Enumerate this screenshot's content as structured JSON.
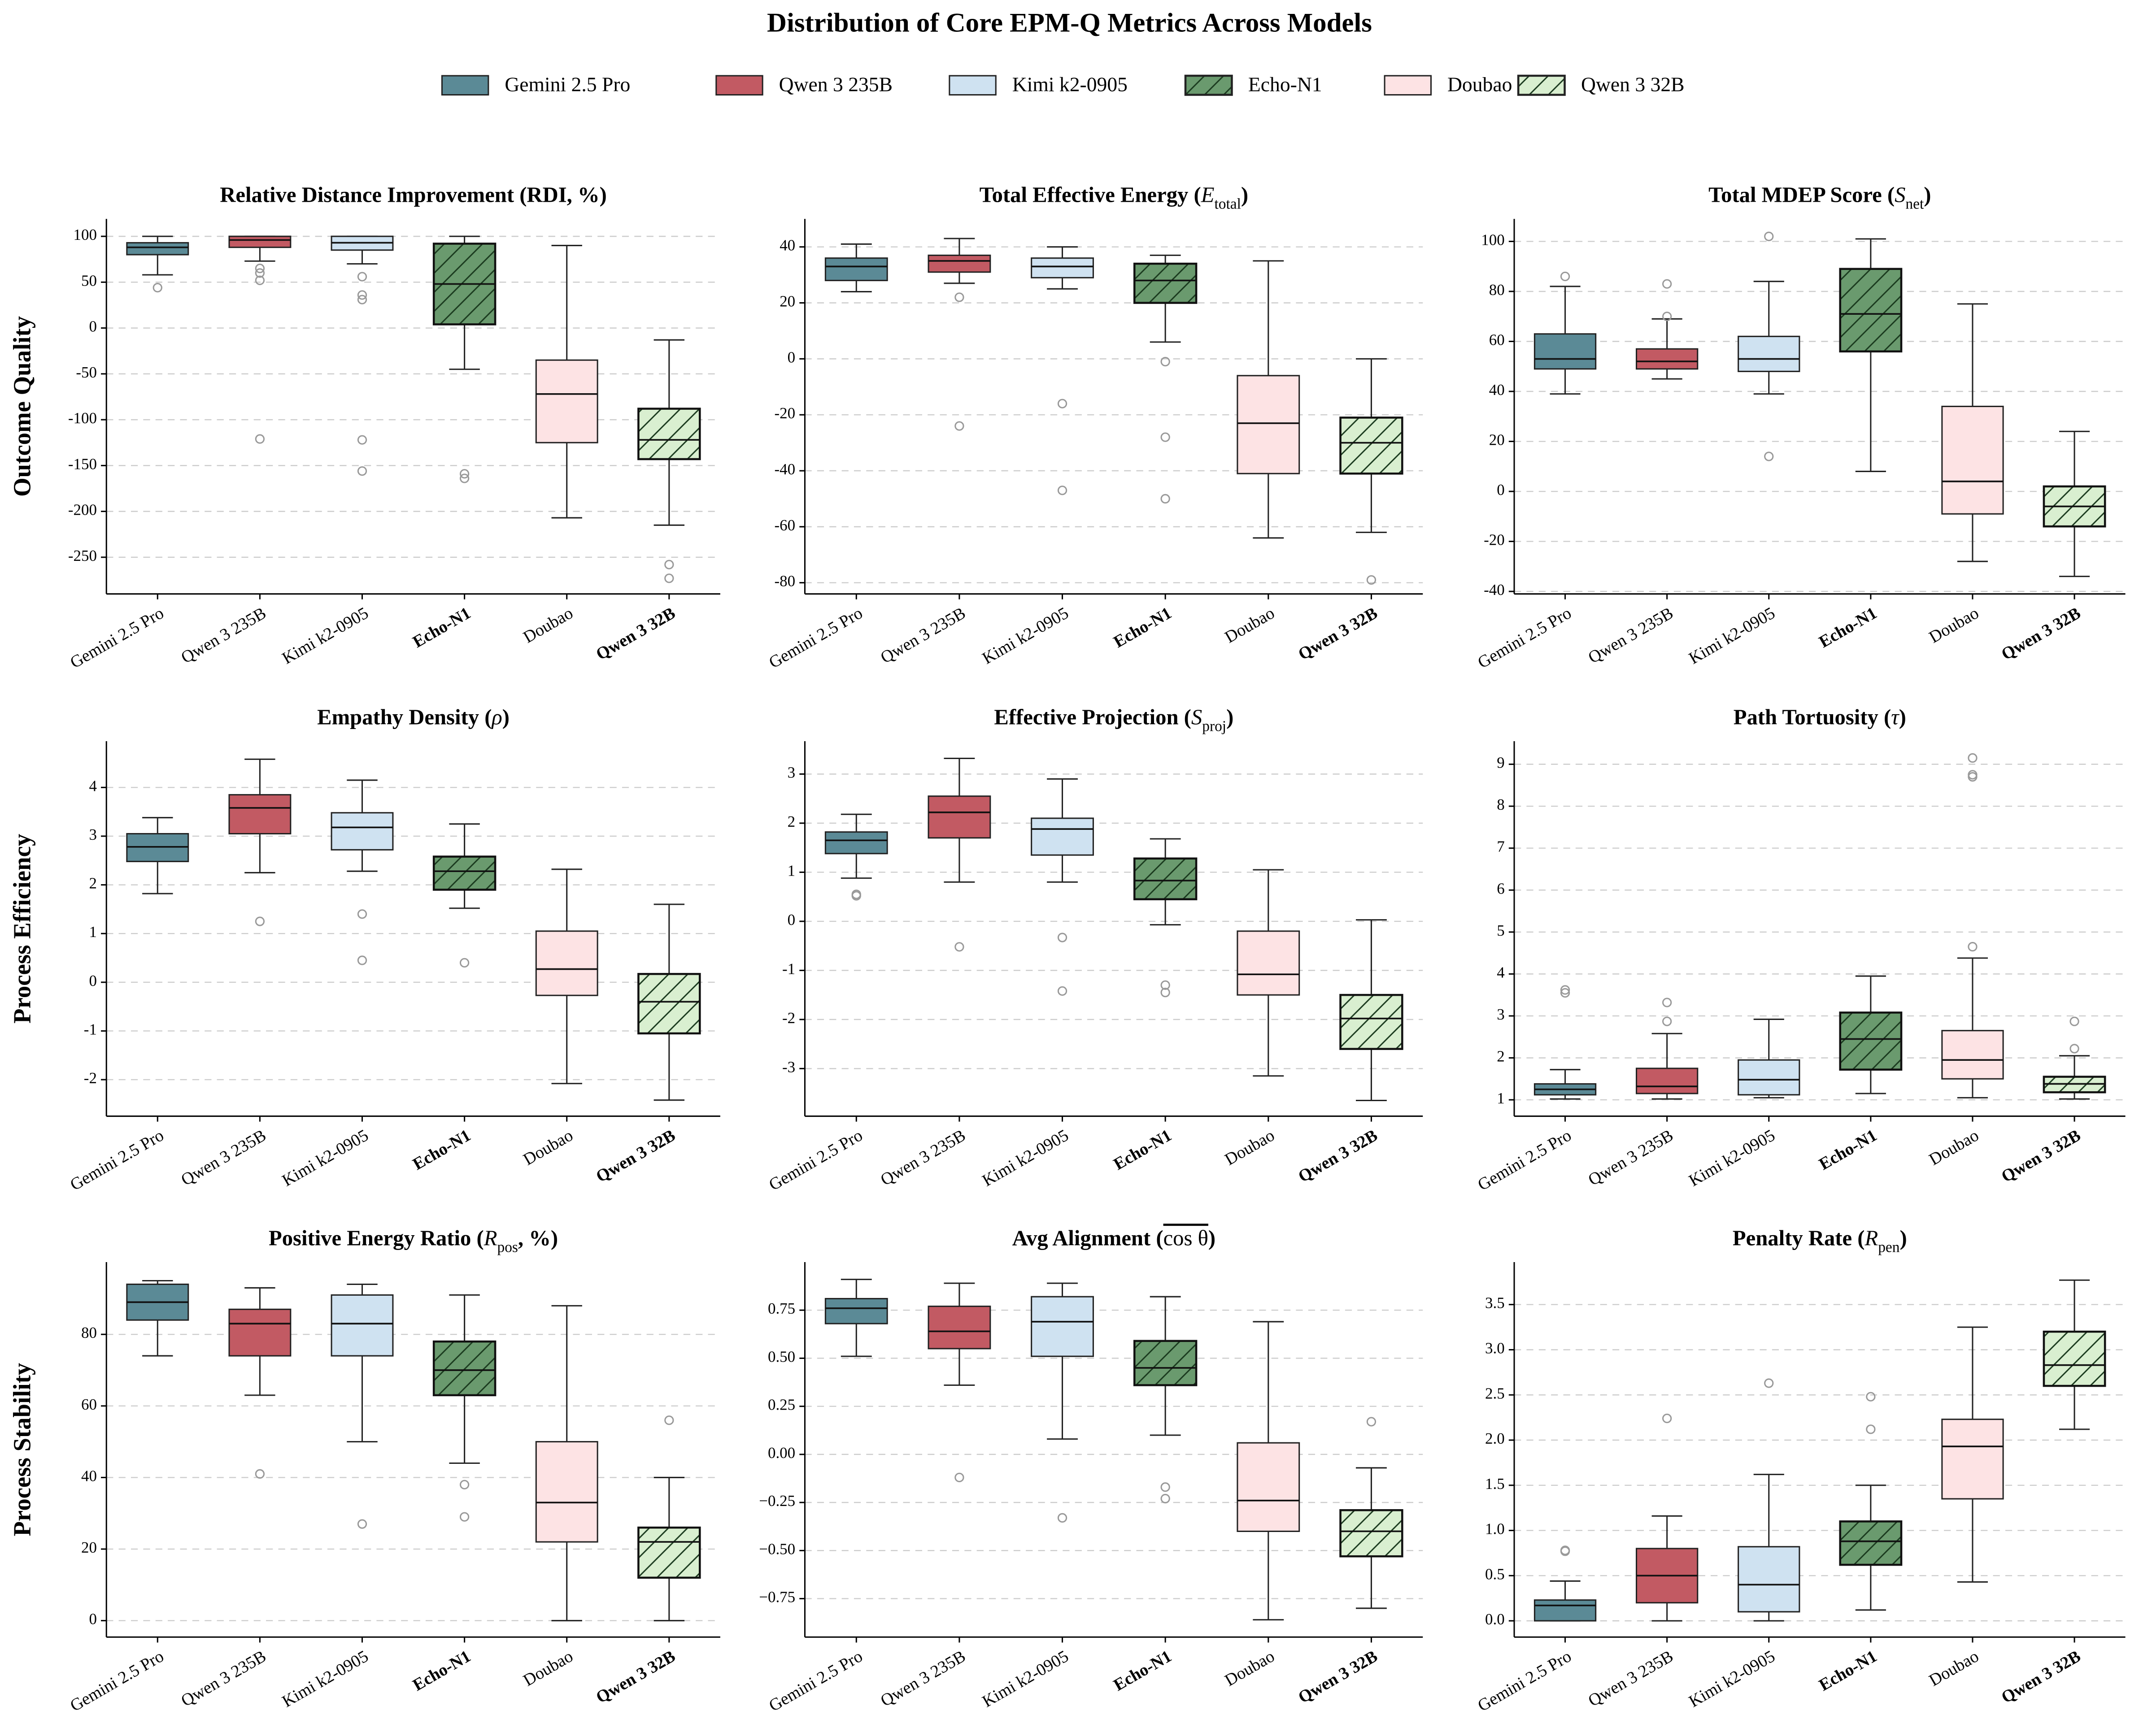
{
  "title": "Distribution of Core EPM-Q Metrics Across Models",
  "legend": {
    "names": [
      "Gemini 2.5 Pro",
      "Qwen 3 235B",
      "Kimi k2-0905",
      "Echo-N1",
      "Doubao",
      "Qwen 3 32B"
    ],
    "colors": [
      "#5b8a96",
      "#c25a63",
      "#cfe2f1",
      "#6a9a6e",
      "#fde3e4",
      "#d9efd0"
    ],
    "hatched": [
      false,
      false,
      false,
      true,
      false,
      true
    ]
  },
  "chart_data": [
    {
      "type": "box",
      "ylabel": "Outcome Quality",
      "title": [
        {
          "text": "Relative Distance Improvement (RDI, %)"
        }
      ],
      "categories": [
        "Gemini 2.5 Pro",
        "Qwen 3 235B",
        "Kimi k2-0905",
        "Echo-N1",
        "Doubao",
        "Qwen 3 32B"
      ],
      "ylim": [
        -290,
        119
      ],
      "yticks": [
        -250,
        -200,
        -150,
        -100,
        -50,
        0,
        50,
        100
      ],
      "grid": true,
      "boxes": [
        {
          "whishi": 100,
          "q3": 93,
          "med": 88,
          "q1": 80,
          "whislo": 58,
          "fliers": [
            44
          ]
        },
        {
          "whishi": 100,
          "q3": 100,
          "med": 96,
          "q1": 88,
          "whislo": 73,
          "fliers": [
            65,
            60,
            52,
            -121
          ]
        },
        {
          "whishi": 100,
          "q3": 100,
          "med": 93,
          "q1": 85,
          "whislo": 70,
          "fliers": [
            56,
            36,
            31,
            -122,
            -156
          ]
        },
        {
          "whishi": 100,
          "q3": 92,
          "med": 48,
          "q1": 4,
          "whislo": -45,
          "fliers": [
            -159,
            -164
          ]
        },
        {
          "whishi": 90,
          "q3": -35,
          "med": -72,
          "q1": -125,
          "whislo": -207,
          "fliers": []
        },
        {
          "whishi": -13,
          "q3": -88,
          "med": -122,
          "q1": -143,
          "whislo": -215,
          "fliers": [
            -258,
            -273
          ]
        }
      ]
    },
    {
      "type": "box",
      "title": [
        {
          "text": "Total Effective Energy ("
        },
        {
          "text": "E",
          "style": "italic"
        },
        {
          "text": "total",
          "style": "sub"
        },
        {
          "text": ")"
        }
      ],
      "categories": [
        "Gemini 2.5 Pro",
        "Qwen 3 235B",
        "Kimi k2-0905",
        "Echo-N1",
        "Doubao",
        "Qwen 3 32B"
      ],
      "ylim": [
        -84,
        50
      ],
      "yticks": [
        -80,
        -60,
        -40,
        -20,
        0,
        20,
        40
      ],
      "grid": true,
      "boxes": [
        {
          "whishi": 41,
          "q3": 36,
          "med": 33,
          "q1": 28,
          "whislo": 24,
          "fliers": []
        },
        {
          "whishi": 43,
          "q3": 37,
          "med": 35,
          "q1": 31,
          "whislo": 27,
          "fliers": [
            22,
            -24
          ]
        },
        {
          "whishi": 40,
          "q3": 36,
          "med": 33,
          "q1": 29,
          "whislo": 25,
          "fliers": [
            -16,
            -47
          ]
        },
        {
          "whishi": 37,
          "q3": 34,
          "med": 28,
          "q1": 20,
          "whislo": 6,
          "fliers": [
            -1,
            -28,
            -50
          ]
        },
        {
          "whishi": 35,
          "q3": -6,
          "med": -23,
          "q1": -41,
          "whislo": -64,
          "fliers": []
        },
        {
          "whishi": 0,
          "q3": -21,
          "med": -30,
          "q1": -41,
          "whislo": -62,
          "fliers": [
            -79
          ]
        }
      ]
    },
    {
      "type": "box",
      "title": [
        {
          "text": "Total MDEP Score ("
        },
        {
          "text": "S",
          "style": "italic"
        },
        {
          "text": "net",
          "style": "sub"
        },
        {
          "text": ")"
        }
      ],
      "categories": [
        "Gemini 2.5 Pro",
        "Qwen 3 235B",
        "Kimi k2-0905",
        "Echo-N1",
        "Doubao",
        "Qwen 3 32B"
      ],
      "ylim": [
        -41,
        109
      ],
      "yticks": [
        -40,
        -20,
        0,
        20,
        40,
        60,
        80,
        100
      ],
      "grid": true,
      "boxes": [
        {
          "whishi": 82,
          "q3": 63,
          "med": 53,
          "q1": 49,
          "whislo": 39,
          "fliers": [
            86
          ]
        },
        {
          "whishi": 69,
          "q3": 57,
          "med": 52,
          "q1": 49,
          "whislo": 45,
          "fliers": [
            83,
            70
          ]
        },
        {
          "whishi": 84,
          "q3": 62,
          "med": 53,
          "q1": 48,
          "whislo": 39,
          "fliers": [
            102,
            14
          ]
        },
        {
          "whishi": 101,
          "q3": 89,
          "med": 71,
          "q1": 56,
          "whislo": 8,
          "fliers": []
        },
        {
          "whishi": 75,
          "q3": 34,
          "med": 4,
          "q1": -9,
          "whislo": -28,
          "fliers": []
        },
        {
          "whishi": 24,
          "q3": 2,
          "med": -6,
          "q1": -14,
          "whislo": -34,
          "fliers": []
        }
      ]
    },
    {
      "type": "box",
      "ylabel": "Process Efficiency",
      "title": [
        {
          "text": "Empathy Density ("
        },
        {
          "text": "ρ",
          "style": "italic"
        },
        {
          "text": ")"
        }
      ],
      "categories": [
        "Gemini 2.5 Pro",
        "Qwen 3 235B",
        "Kimi k2-0905",
        "Echo-N1",
        "Doubao",
        "Qwen 3 32B"
      ],
      "ylim": [
        -2.75,
        4.95
      ],
      "yticks": [
        -2,
        -1,
        0,
        1,
        2,
        3,
        4
      ],
      "grid": true,
      "boxes": [
        {
          "whishi": 3.38,
          "q3": 3.05,
          "med": 2.78,
          "q1": 2.48,
          "whislo": 1.82,
          "fliers": []
        },
        {
          "whishi": 4.58,
          "q3": 3.85,
          "med": 3.58,
          "q1": 3.05,
          "whislo": 2.25,
          "fliers": [
            1.25
          ]
        },
        {
          "whishi": 4.15,
          "q3": 3.48,
          "med": 3.18,
          "q1": 2.72,
          "whislo": 2.28,
          "fliers": [
            1.4,
            0.45
          ]
        },
        {
          "whishi": 3.25,
          "q3": 2.58,
          "med": 2.28,
          "q1": 1.9,
          "whislo": 1.52,
          "fliers": [
            0.4
          ]
        },
        {
          "whishi": 2.32,
          "q3": 1.05,
          "med": 0.27,
          "q1": -0.27,
          "whislo": -2.08,
          "fliers": []
        },
        {
          "whishi": 1.6,
          "q3": 0.17,
          "med": -0.4,
          "q1": -1.05,
          "whislo": -2.42,
          "fliers": []
        }
      ]
    },
    {
      "type": "box",
      "title": [
        {
          "text": "Effective Projection ("
        },
        {
          "text": "S",
          "style": "italic"
        },
        {
          "text": "proj",
          "style": "sub"
        },
        {
          "text": ")"
        }
      ],
      "categories": [
        "Gemini 2.5 Pro",
        "Qwen 3 235B",
        "Kimi k2-0905",
        "Echo-N1",
        "Doubao",
        "Qwen 3 32B"
      ],
      "ylim": [
        -3.97,
        3.67
      ],
      "yticks": [
        -3,
        -2,
        -1,
        0,
        1,
        2,
        3
      ],
      "grid": true,
      "boxes": [
        {
          "whishi": 2.18,
          "q3": 1.82,
          "med": 1.65,
          "q1": 1.38,
          "whislo": 0.88,
          "fliers": [
            0.55,
            0.52
          ]
        },
        {
          "whishi": 3.32,
          "q3": 2.55,
          "med": 2.22,
          "q1": 1.7,
          "whislo": 0.8,
          "fliers": [
            -0.52
          ]
        },
        {
          "whishi": 2.9,
          "q3": 2.1,
          "med": 1.88,
          "q1": 1.35,
          "whislo": 0.8,
          "fliers": [
            -0.33,
            -1.42
          ]
        },
        {
          "whishi": 1.68,
          "q3": 1.28,
          "med": 0.83,
          "q1": 0.45,
          "whislo": -0.07,
          "fliers": [
            -1.3,
            -1.45
          ]
        },
        {
          "whishi": 1.05,
          "q3": -0.2,
          "med": -1.08,
          "q1": -1.5,
          "whislo": -3.15,
          "fliers": []
        },
        {
          "whishi": 0.03,
          "q3": -1.5,
          "med": -1.98,
          "q1": -2.6,
          "whislo": -3.65,
          "fliers": []
        }
      ]
    },
    {
      "type": "box",
      "title": [
        {
          "text": "Path Tortuosity ("
        },
        {
          "text": "τ",
          "style": "italic"
        },
        {
          "text": ")"
        }
      ],
      "categories": [
        "Gemini 2.5 Pro",
        "Qwen 3 235B",
        "Kimi k2-0905",
        "Echo-N1",
        "Doubao",
        "Qwen 3 32B"
      ],
      "ylim": [
        0.61,
        9.55
      ],
      "yticks": [
        1,
        2,
        3,
        4,
        5,
        6,
        7,
        8,
        9
      ],
      "grid": true,
      "boxes": [
        {
          "whishi": 1.72,
          "q3": 1.38,
          "med": 1.25,
          "q1": 1.12,
          "whislo": 1.02,
          "fliers": [
            3.62,
            3.55
          ]
        },
        {
          "whishi": 2.58,
          "q3": 1.75,
          "med": 1.32,
          "q1": 1.15,
          "whislo": 1.02,
          "fliers": [
            3.32,
            2.87
          ]
        },
        {
          "whishi": 2.92,
          "q3": 1.95,
          "med": 1.48,
          "q1": 1.12,
          "whislo": 1.05,
          "fliers": []
        },
        {
          "whishi": 3.95,
          "q3": 3.08,
          "med": 2.45,
          "q1": 1.72,
          "whislo": 1.15,
          "fliers": []
        },
        {
          "whishi": 4.38,
          "q3": 2.65,
          "med": 1.95,
          "q1": 1.5,
          "whislo": 1.05,
          "fliers": [
            9.15,
            8.75,
            8.7,
            4.65
          ]
        },
        {
          "whishi": 2.05,
          "q3": 1.55,
          "med": 1.38,
          "q1": 1.18,
          "whislo": 1.02,
          "fliers": [
            2.87,
            2.22
          ]
        }
      ]
    },
    {
      "type": "box",
      "ylabel": "Process Stability",
      "title": [
        {
          "text": "Positive Energy Ratio ("
        },
        {
          "text": "R",
          "style": "italic"
        },
        {
          "text": "pos",
          "style": "sub"
        },
        {
          "text": ", %)"
        }
      ],
      "categories": [
        "Gemini 2.5 Pro",
        "Qwen 3 235B",
        "Kimi k2-0905",
        "Echo-N1",
        "Doubao",
        "Qwen 3 32B"
      ],
      "ylim": [
        -4.6,
        100.2
      ],
      "yticks": [
        0,
        20,
        40,
        60,
        80
      ],
      "grid": true,
      "boxes": [
        {
          "whishi": 95,
          "q3": 94,
          "med": 89,
          "q1": 84,
          "whislo": 74,
          "fliers": []
        },
        {
          "whishi": 93,
          "q3": 87,
          "med": 83,
          "q1": 74,
          "whislo": 63,
          "fliers": [
            41
          ]
        },
        {
          "whishi": 94,
          "q3": 91,
          "med": 83,
          "q1": 74,
          "whislo": 50,
          "fliers": [
            27
          ]
        },
        {
          "whishi": 91,
          "q3": 78,
          "med": 70,
          "q1": 63,
          "whislo": 44,
          "fliers": [
            38,
            29
          ]
        },
        {
          "whishi": 88,
          "q3": 50,
          "med": 33,
          "q1": 22,
          "whislo": 0,
          "fliers": []
        },
        {
          "whishi": 40,
          "q3": 26,
          "med": 22,
          "q1": 12,
          "whislo": 0,
          "fliers": [
            56
          ]
        }
      ]
    },
    {
      "type": "box",
      "title": [
        {
          "text": "Avg Alignment ("
        },
        {
          "text": "cos θ",
          "style": "overline"
        },
        {
          "text": ")"
        }
      ],
      "categories": [
        "Gemini 2.5 Pro",
        "Qwen 3 235B",
        "Kimi k2-0905",
        "Echo-N1",
        "Doubao",
        "Qwen 3 32B"
      ],
      "ylim": [
        -0.95,
        1.0
      ],
      "yticks": [
        {
          "value": -0.75,
          "label": "−0.75"
        },
        {
          "value": -0.5,
          "label": "−0.50"
        },
        {
          "value": -0.25,
          "label": "−0.25"
        },
        {
          "value": 0,
          "label": "0.00"
        },
        {
          "value": 0.25,
          "label": "0.25"
        },
        {
          "value": 0.5,
          "label": "0.50"
        },
        {
          "value": 0.75,
          "label": "0.75"
        }
      ],
      "grid": true,
      "boxes": [
        {
          "whishi": 0.91,
          "q3": 0.81,
          "med": 0.76,
          "q1": 0.68,
          "whislo": 0.51,
          "fliers": []
        },
        {
          "whishi": 0.89,
          "q3": 0.77,
          "med": 0.64,
          "q1": 0.55,
          "whislo": 0.36,
          "fliers": [
            -0.12
          ]
        },
        {
          "whishi": 0.89,
          "q3": 0.82,
          "med": 0.69,
          "q1": 0.51,
          "whislo": 0.08,
          "fliers": [
            -0.33
          ]
        },
        {
          "whishi": 0.82,
          "q3": 0.59,
          "med": 0.45,
          "q1": 0.36,
          "whislo": 0.1,
          "fliers": [
            -0.17,
            -0.23
          ]
        },
        {
          "whishi": 0.69,
          "q3": 0.06,
          "med": -0.24,
          "q1": -0.4,
          "whislo": -0.86,
          "fliers": []
        },
        {
          "whishi": -0.07,
          "q3": -0.29,
          "med": -0.4,
          "q1": -0.53,
          "whislo": -0.8,
          "fliers": [
            0.17
          ]
        }
      ]
    },
    {
      "type": "box",
      "title": [
        {
          "text": "Penalty Rate ("
        },
        {
          "text": "R",
          "style": "italic"
        },
        {
          "text": "pen",
          "style": "sub"
        },
        {
          "text": ")"
        }
      ],
      "categories": [
        "Gemini 2.5 Pro",
        "Qwen 3 235B",
        "Kimi k2-0905",
        "Echo-N1",
        "Doubao",
        "Qwen 3 32B"
      ],
      "ylim": [
        -0.18,
        3.97
      ],
      "yticks": [
        {
          "value": 0,
          "label": "0.0"
        },
        {
          "value": 0.5,
          "label": "0.5"
        },
        {
          "value": 1,
          "label": "1.0"
        },
        {
          "value": 1.5,
          "label": "1.5"
        },
        {
          "value": 2,
          "label": "2.0"
        },
        {
          "value": 2.5,
          "label": "2.5"
        },
        {
          "value": 3,
          "label": "3.0"
        },
        {
          "value": 3.5,
          "label": "3.5"
        }
      ],
      "grid": true,
      "boxes": [
        {
          "whishi": 0.44,
          "q3": 0.23,
          "med": 0.17,
          "q1": 0,
          "whislo": 0,
          "fliers": [
            0.78,
            0.77
          ]
        },
        {
          "whishi": 1.16,
          "q3": 0.8,
          "med": 0.5,
          "q1": 0.2,
          "whislo": 0,
          "fliers": [
            2.24
          ]
        },
        {
          "whishi": 1.62,
          "q3": 0.82,
          "med": 0.4,
          "q1": 0.1,
          "whislo": 0,
          "fliers": [
            2.63
          ]
        },
        {
          "whishi": 1.5,
          "q3": 1.1,
          "med": 0.88,
          "q1": 0.62,
          "whislo": 0.12,
          "fliers": [
            2.48,
            2.12
          ]
        },
        {
          "whishi": 3.25,
          "q3": 2.23,
          "med": 1.93,
          "q1": 1.35,
          "whislo": 0.43,
          "fliers": []
        },
        {
          "whishi": 3.77,
          "q3": 3.2,
          "med": 2.83,
          "q1": 2.6,
          "whislo": 2.12,
          "fliers": []
        }
      ]
    }
  ]
}
